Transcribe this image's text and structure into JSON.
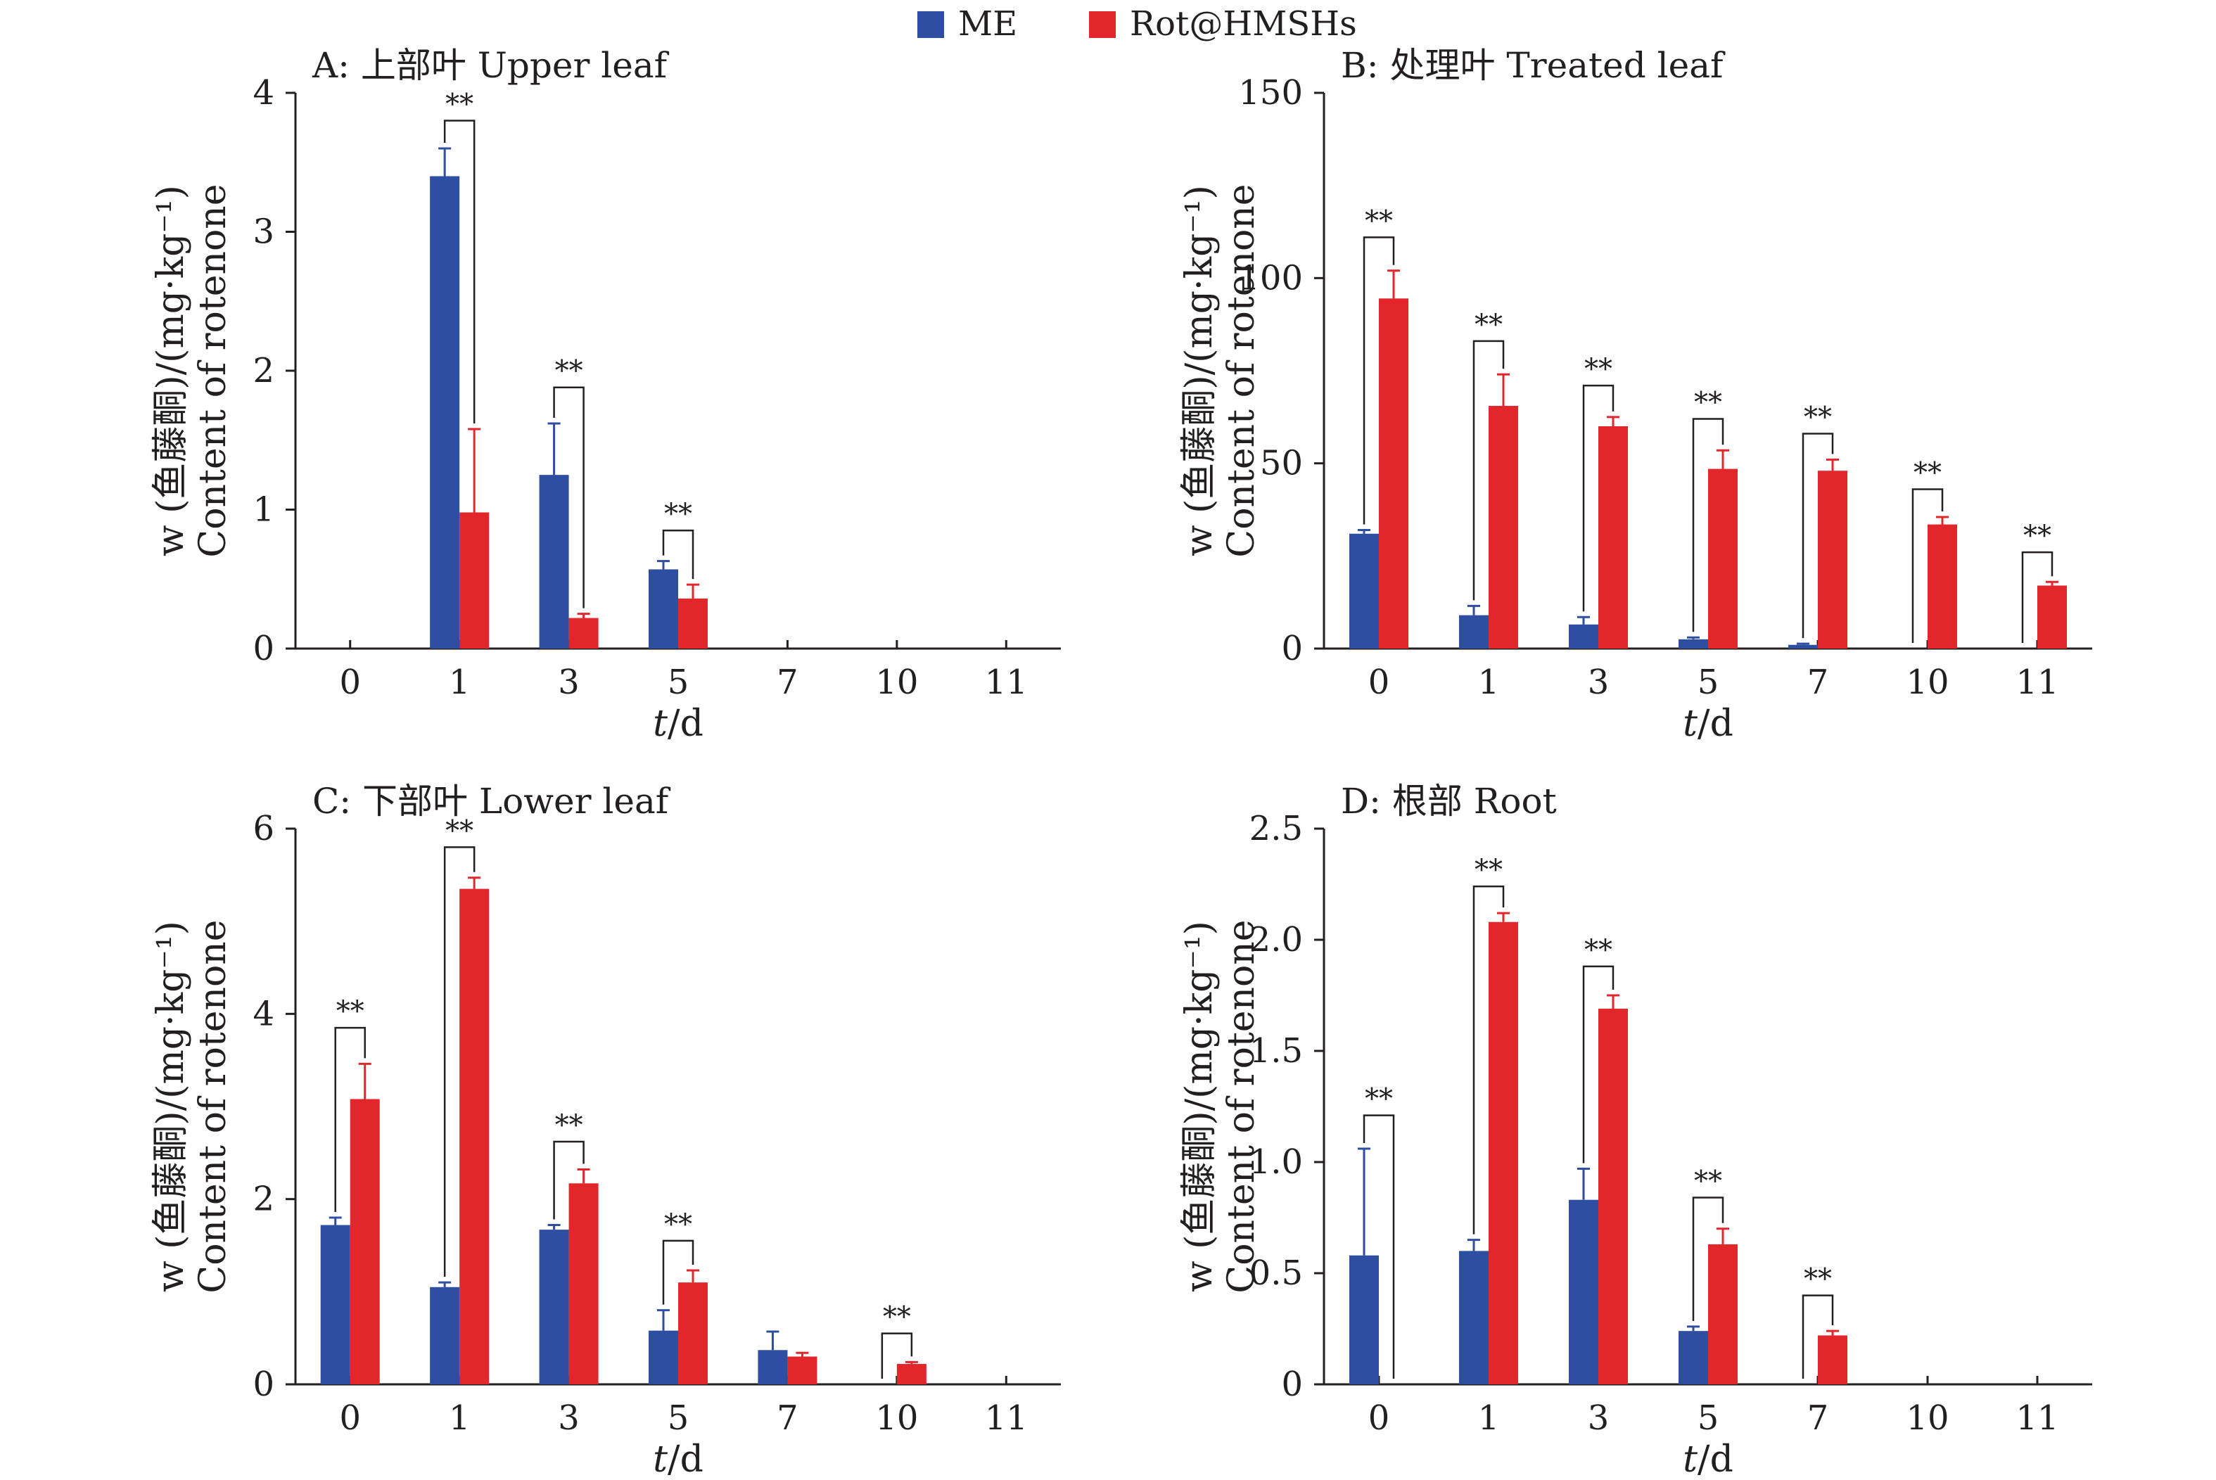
{
  "legend": {
    "position": "top-center",
    "items": [
      {
        "label": "ME",
        "color": "#2e4ea1"
      },
      {
        "label": "Rot@HMSHs",
        "color": "#e1262c"
      }
    ]
  },
  "colors": {
    "ME": "#2e4ea1",
    "Rot@HMSHs": "#e1262c",
    "axis": "#231f20"
  },
  "significance_label": "**",
  "chart_data": [
    {
      "type": "bar",
      "title": "A: 上部叶 Upper leaf",
      "xlabel_var": "t",
      "xlabel_unit": "/d",
      "ylabel_line1": "w (鱼藤酮)/(mg·kg⁻¹)",
      "ylabel_line2": "Content of rotenone",
      "categories": [
        "0",
        "1",
        "3",
        "5",
        "7",
        "10",
        "11"
      ],
      "ylim": [
        0,
        4
      ],
      "yticks": [
        0,
        1,
        2,
        3,
        4
      ],
      "ytick_labels": [
        "0",
        "1",
        "2",
        "3",
        "4"
      ],
      "series": [
        {
          "name": "ME",
          "values": [
            0,
            3.4,
            1.25,
            0.57,
            0,
            0,
            0
          ],
          "errors": [
            0,
            0.2,
            0.37,
            0.06,
            0,
            0,
            0
          ]
        },
        {
          "name": "Rot@HMSHs",
          "values": [
            0,
            0.98,
            0.22,
            0.36,
            0,
            0,
            0
          ],
          "errors": [
            0,
            0.6,
            0.03,
            0.1,
            0,
            0,
            0
          ]
        }
      ],
      "significance": [
        {
          "index": 1,
          "label": "**",
          "level": 3.8
        },
        {
          "index": 2,
          "label": "**",
          "level": 1.88
        },
        {
          "index": 3,
          "label": "**",
          "level": 0.85
        }
      ],
      "grid": false
    },
    {
      "type": "bar",
      "title": "B: 处理叶 Treated leaf",
      "xlabel_var": "t",
      "xlabel_unit": "/d",
      "ylabel_line1": "w (鱼藤酮)/(mg·kg⁻¹)",
      "ylabel_line2": "Content of rotenone",
      "categories": [
        "0",
        "1",
        "3",
        "5",
        "7",
        "10",
        "11"
      ],
      "ylim": [
        0,
        150
      ],
      "yticks": [
        0,
        50,
        100,
        150
      ],
      "ytick_labels": [
        "0",
        "50",
        "100",
        "150"
      ],
      "series": [
        {
          "name": "ME",
          "values": [
            31,
            9,
            6.5,
            2.5,
            1,
            0,
            0
          ],
          "errors": [
            1,
            2.5,
            2,
            0.5,
            0.3,
            0,
            0
          ]
        },
        {
          "name": "Rot@HMSHs",
          "values": [
            94.5,
            65.5,
            60,
            48.5,
            48,
            33.5,
            17
          ],
          "errors": [
            7.5,
            8.5,
            2.5,
            5,
            3,
            2,
            1
          ]
        }
      ],
      "significance": [
        {
          "index": 0,
          "label": "**",
          "level": 111
        },
        {
          "index": 1,
          "label": "**",
          "level": 83
        },
        {
          "index": 2,
          "label": "**",
          "level": 71
        },
        {
          "index": 3,
          "label": "**",
          "level": 62
        },
        {
          "index": 4,
          "label": "**",
          "level": 58
        },
        {
          "index": 5,
          "label": "**",
          "level": 43
        },
        {
          "index": 6,
          "label": "**",
          "level": 26
        }
      ],
      "grid": false
    },
    {
      "type": "bar",
      "title": "C: 下部叶 Lower leaf",
      "xlabel_var": "t",
      "xlabel_unit": "/d",
      "ylabel_line1": "w (鱼藤酮)/(mg·kg⁻¹)",
      "ylabel_line2": "Content of rotenone",
      "categories": [
        "0",
        "1",
        "3",
        "5",
        "7",
        "10",
        "11"
      ],
      "ylim": [
        0,
        6
      ],
      "yticks": [
        0,
        2,
        4,
        6
      ],
      "ytick_labels": [
        "0",
        "2",
        "4",
        "6"
      ],
      "series": [
        {
          "name": "ME",
          "values": [
            1.72,
            1.05,
            1.67,
            0.58,
            0.37,
            0,
            0
          ],
          "errors": [
            0.08,
            0.05,
            0.05,
            0.22,
            0.2,
            0,
            0
          ]
        },
        {
          "name": "Rot@HMSHs",
          "values": [
            3.08,
            5.35,
            2.17,
            1.1,
            0.3,
            0.22,
            0
          ],
          "errors": [
            0.38,
            0.12,
            0.15,
            0.13,
            0.04,
            0.02,
            0
          ]
        }
      ],
      "significance": [
        {
          "index": 0,
          "label": "**",
          "level": 3.85
        },
        {
          "index": 1,
          "label": "**",
          "level": 5.8
        },
        {
          "index": 2,
          "label": "**",
          "level": 2.62
        },
        {
          "index": 3,
          "label": "**",
          "level": 1.55
        },
        {
          "index": 5,
          "label": "**",
          "level": 0.55
        }
      ],
      "grid": false
    },
    {
      "type": "bar",
      "title": "D: 根部 Root",
      "xlabel_var": "t",
      "xlabel_unit": "/d",
      "ylabel_line1": "w (鱼藤酮)/(mg·kg⁻¹)",
      "ylabel_line2": "Content of rotenone",
      "categories": [
        "0",
        "1",
        "3",
        "5",
        "7",
        "10",
        "11"
      ],
      "ylim": [
        0,
        2.5
      ],
      "yticks": [
        0,
        0.5,
        1.0,
        1.5,
        2.0,
        2.5
      ],
      "ytick_labels": [
        "0",
        "0.5",
        "1.0",
        "1.5",
        "2.0",
        "2.5"
      ],
      "series": [
        {
          "name": "ME",
          "values": [
            0.58,
            0.6,
            0.83,
            0.24,
            0,
            0,
            0
          ],
          "errors": [
            0.48,
            0.05,
            0.14,
            0.02,
            0,
            0,
            0
          ]
        },
        {
          "name": "Rot@HMSHs",
          "values": [
            0,
            2.08,
            1.69,
            0.63,
            0.22,
            0,
            0
          ],
          "errors": [
            0,
            0.04,
            0.06,
            0.07,
            0.02,
            0,
            0
          ]
        }
      ],
      "significance": [
        {
          "index": 0,
          "label": "**",
          "level": 1.21
        },
        {
          "index": 1,
          "label": "**",
          "level": 2.24
        },
        {
          "index": 2,
          "label": "**",
          "level": 1.88
        },
        {
          "index": 3,
          "label": "**",
          "level": 0.84
        },
        {
          "index": 4,
          "label": "**",
          "level": 0.4
        }
      ],
      "grid": false
    }
  ]
}
